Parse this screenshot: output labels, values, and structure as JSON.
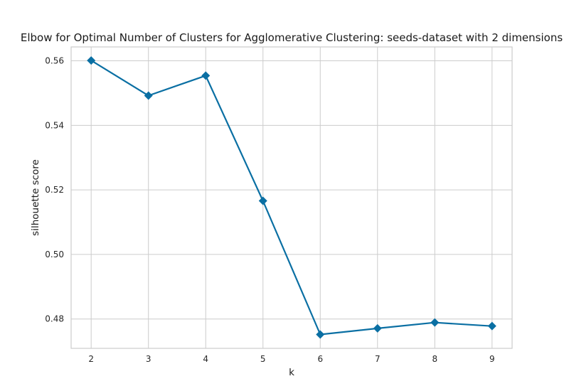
{
  "chart_data": {
    "type": "line",
    "title": "Elbow for Optimal Number of Clusters for Agglomerative Clustering: seeds-dataset with 2 dimensions",
    "xlabel": "k",
    "ylabel": "silhouette score",
    "x": [
      2,
      3,
      4,
      5,
      6,
      7,
      8,
      9
    ],
    "series": [
      {
        "values": [
          0.5601,
          0.5492,
          0.5554,
          0.5166,
          0.4752,
          0.4771,
          0.4789,
          0.4778
        ]
      }
    ],
    "xticks": [
      "2",
      "3",
      "4",
      "5",
      "6",
      "7",
      "8",
      "9"
    ],
    "yticks": [
      "0.48",
      "0.50",
      "0.52",
      "0.54",
      "0.56"
    ],
    "ylim": [
      0.4709,
      0.5643
    ],
    "xlim": [
      1.65,
      9.35
    ],
    "grid": true,
    "marker": "diamond",
    "color": "#0a6fa3"
  }
}
